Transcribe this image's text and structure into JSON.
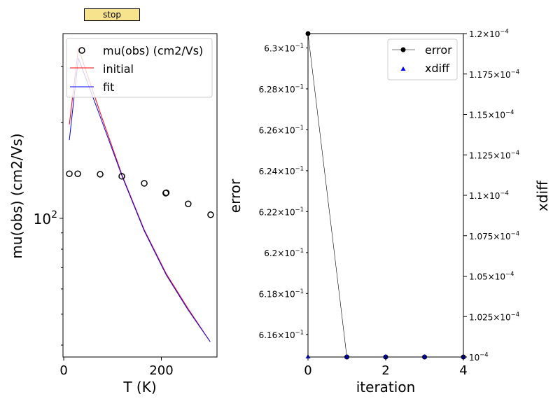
{
  "controls": {
    "stop_label": "stop"
  },
  "colors": {
    "obs": "#000000",
    "initial": "#ff0000",
    "fit": "#0000ff",
    "error": "#000000",
    "xdiff": "#0000ff",
    "button": "#f7e38e"
  },
  "chart_data": [
    {
      "type": "scatter+line",
      "xlabel": "T (K)",
      "ylabel": "mu(obs) (cm2/Vs)",
      "yscale": "log",
      "xlim": [
        -1.5,
        314
      ],
      "ylim": [
        36.7,
        380
      ],
      "xticks": [
        {
          "value": 0,
          "label": "0"
        },
        {
          "value": 200,
          "label": "200"
        }
      ],
      "yticks": [
        {
          "value": 100,
          "label": "10",
          "sup": "2"
        }
      ],
      "yminor": [
        40,
        50,
        60,
        70,
        80,
        90,
        200,
        300
      ],
      "legend": {
        "placement": "upper-right",
        "entries": [
          "mu(obs) (cm2/Vs)",
          "initial",
          "fit"
        ]
      },
      "series": [
        {
          "name": "mu(obs) (cm2/Vs)",
          "kind": "scatter",
          "marker": "open-circle",
          "x": [
            11.5,
            28.7,
            74.6,
            119,
            165,
            209,
            210,
            255,
            301
          ],
          "y": [
            138,
            138,
            137.5,
            135.5,
            128.8,
            120,
            120.3,
            111,
            102.6
          ]
        },
        {
          "name": "initial",
          "kind": "line",
          "x": [
            11.5,
            30,
            75,
            120,
            165,
            210,
            255,
            300
          ],
          "y": [
            197,
            342,
            214,
            136,
            92,
            67,
            52,
            41
          ]
        },
        {
          "name": "fit",
          "kind": "line",
          "x": [
            11.5,
            30,
            75,
            120,
            165,
            210,
            255,
            300
          ],
          "y": [
            176,
            318,
            208,
            135,
            91.3,
            66.4,
            51.5,
            41
          ]
        }
      ]
    },
    {
      "type": "line+scatter",
      "xlabel": "iteration",
      "ylabel": "error",
      "ylabel_right": "xdiff",
      "xlim": [
        0,
        4
      ],
      "ylim": [
        0.6149,
        0.6307
      ],
      "ylim_right": [
        0.0001,
        0.00012
      ],
      "xticks": [
        {
          "value": 0,
          "label": "0"
        },
        {
          "value": 2,
          "label": "2"
        },
        {
          "value": 4,
          "label": "4"
        }
      ],
      "yticks": [
        {
          "value": 0.63,
          "label": "6.3",
          "exp": "−1"
        },
        {
          "value": 0.628,
          "label": "6.28",
          "exp": "−1"
        },
        {
          "value": 0.626,
          "label": "6.26",
          "exp": "−1"
        },
        {
          "value": 0.624,
          "label": "6.24",
          "exp": "−1"
        },
        {
          "value": 0.622,
          "label": "6.22",
          "exp": "−1"
        },
        {
          "value": 0.62,
          "label": "6.2",
          "exp": "−1"
        },
        {
          "value": 0.618,
          "label": "6.18",
          "exp": "−1"
        },
        {
          "value": 0.616,
          "label": "6.16",
          "exp": "−1"
        }
      ],
      "yticks_right": [
        {
          "value": 0.00012,
          "label": "1.2",
          "exp": "−4"
        },
        {
          "value": 0.0001175,
          "label": "1.175",
          "exp": "−4"
        },
        {
          "value": 0.000115,
          "label": "1.15",
          "exp": "−4"
        },
        {
          "value": 0.0001125,
          "label": "1.125",
          "exp": "−4"
        },
        {
          "value": 0.00011,
          "label": "1.1",
          "exp": "−4"
        },
        {
          "value": 0.0001075,
          "label": "1.075",
          "exp": "−4"
        },
        {
          "value": 0.000105,
          "label": "1.05",
          "exp": "−4"
        },
        {
          "value": 0.0001025,
          "label": "1.025",
          "exp": "−4"
        },
        {
          "value": 0.0001,
          "label": "",
          "exp": "−4"
        }
      ],
      "legend": {
        "placement": "upper-right",
        "entries": [
          "error",
          "xdiff"
        ]
      },
      "series": [
        {
          "name": "error",
          "kind": "line-marker",
          "x": [
            0,
            1,
            2,
            3,
            4
          ],
          "y": [
            0.6307,
            0.6149,
            0.6149,
            0.6149,
            0.6149
          ]
        },
        {
          "name": "xdiff",
          "kind": "scatter",
          "marker": "triangle",
          "axis": "right",
          "x": [
            0,
            1,
            2,
            3,
            4
          ],
          "y": [
            0.0001,
            0.0001,
            0.0001,
            0.0001,
            0.0001
          ]
        }
      ]
    }
  ]
}
